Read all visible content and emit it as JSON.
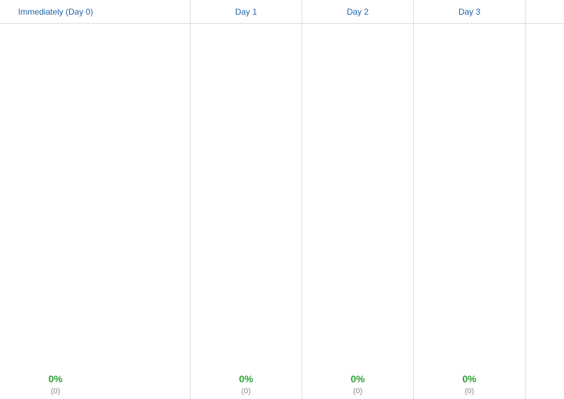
{
  "columns": [
    {
      "label": "Immediately (Day 0)",
      "percent": "0%",
      "count": "(0)"
    },
    {
      "label": "Day 1",
      "percent": "0%",
      "count": "(0)"
    },
    {
      "label": "Day 2",
      "percent": "0%",
      "count": "(0)"
    },
    {
      "label": "Day 3",
      "percent": "0%",
      "count": "(0)"
    },
    {
      "label": "",
      "percent": "",
      "count": ""
    }
  ],
  "colors": {
    "header_link": "#1f62a8",
    "percent": "#2aa136",
    "count": "#888888",
    "divider": "#dcdcdc"
  }
}
